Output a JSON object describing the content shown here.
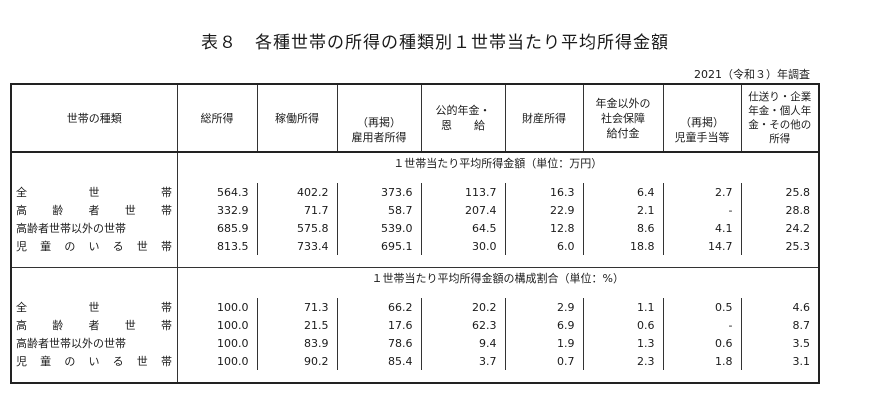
{
  "title": "表８　各種世帯の所得の種類別１世帯当たり平均所得金額",
  "survey_note": "2021（令和３）年調査",
  "headers": {
    "type": "世帯の種類",
    "total": "総所得",
    "work": "稼働所得",
    "employee_a": "（再掲）",
    "employee_b": "雇用者所得",
    "pension_a": "公的年金・",
    "pension_b": "恩　　給",
    "property": "財産所得",
    "social_a": "年金以外の",
    "social_b": "社会保障",
    "social_c": "給付金",
    "child_a": "（再掲）",
    "child_b": "児童手当等",
    "other_a": "仕送り・企業",
    "other_b": "年金・個人年",
    "other_c": "金・その他の",
    "other_d": "所得"
  },
  "section1_title": "１世帯当たり平均所得金額（単位：万円）",
  "section2_title": "１世帯当たり平均所得金額の構成割合（単位：%）",
  "labels": {
    "all": [
      "全",
      "世",
      "帯"
    ],
    "elderly": [
      "高",
      "齢",
      "者",
      "世",
      "帯"
    ],
    "non_elderly": "高齢者世帯以外の世帯",
    "child": [
      "児",
      "童",
      "の",
      "い",
      "る",
      "世",
      "帯"
    ]
  },
  "section1_rows": [
    [
      "564.3",
      "402.2",
      "373.6",
      "113.7",
      "16.3",
      "6.4",
      "2.7",
      "25.8"
    ],
    [
      "332.9",
      "71.7",
      "58.7",
      "207.4",
      "22.9",
      "2.1",
      "-",
      "28.8"
    ],
    [
      "685.9",
      "575.8",
      "539.0",
      "64.5",
      "12.8",
      "8.6",
      "4.1",
      "24.2"
    ],
    [
      "813.5",
      "733.4",
      "695.1",
      "30.0",
      "6.0",
      "18.8",
      "14.7",
      "25.3"
    ]
  ],
  "section2_rows": [
    [
      "100.0",
      "71.3",
      "66.2",
      "20.2",
      "2.9",
      "1.1",
      "0.5",
      "4.6"
    ],
    [
      "100.0",
      "21.5",
      "17.6",
      "62.3",
      "6.9",
      "0.6",
      "-",
      "8.7"
    ],
    [
      "100.0",
      "83.9",
      "78.6",
      "9.4",
      "1.9",
      "1.3",
      "0.6",
      "3.5"
    ],
    [
      "100.0",
      "90.2",
      "85.4",
      "3.7",
      "0.7",
      "2.3",
      "1.8",
      "3.1"
    ]
  ]
}
